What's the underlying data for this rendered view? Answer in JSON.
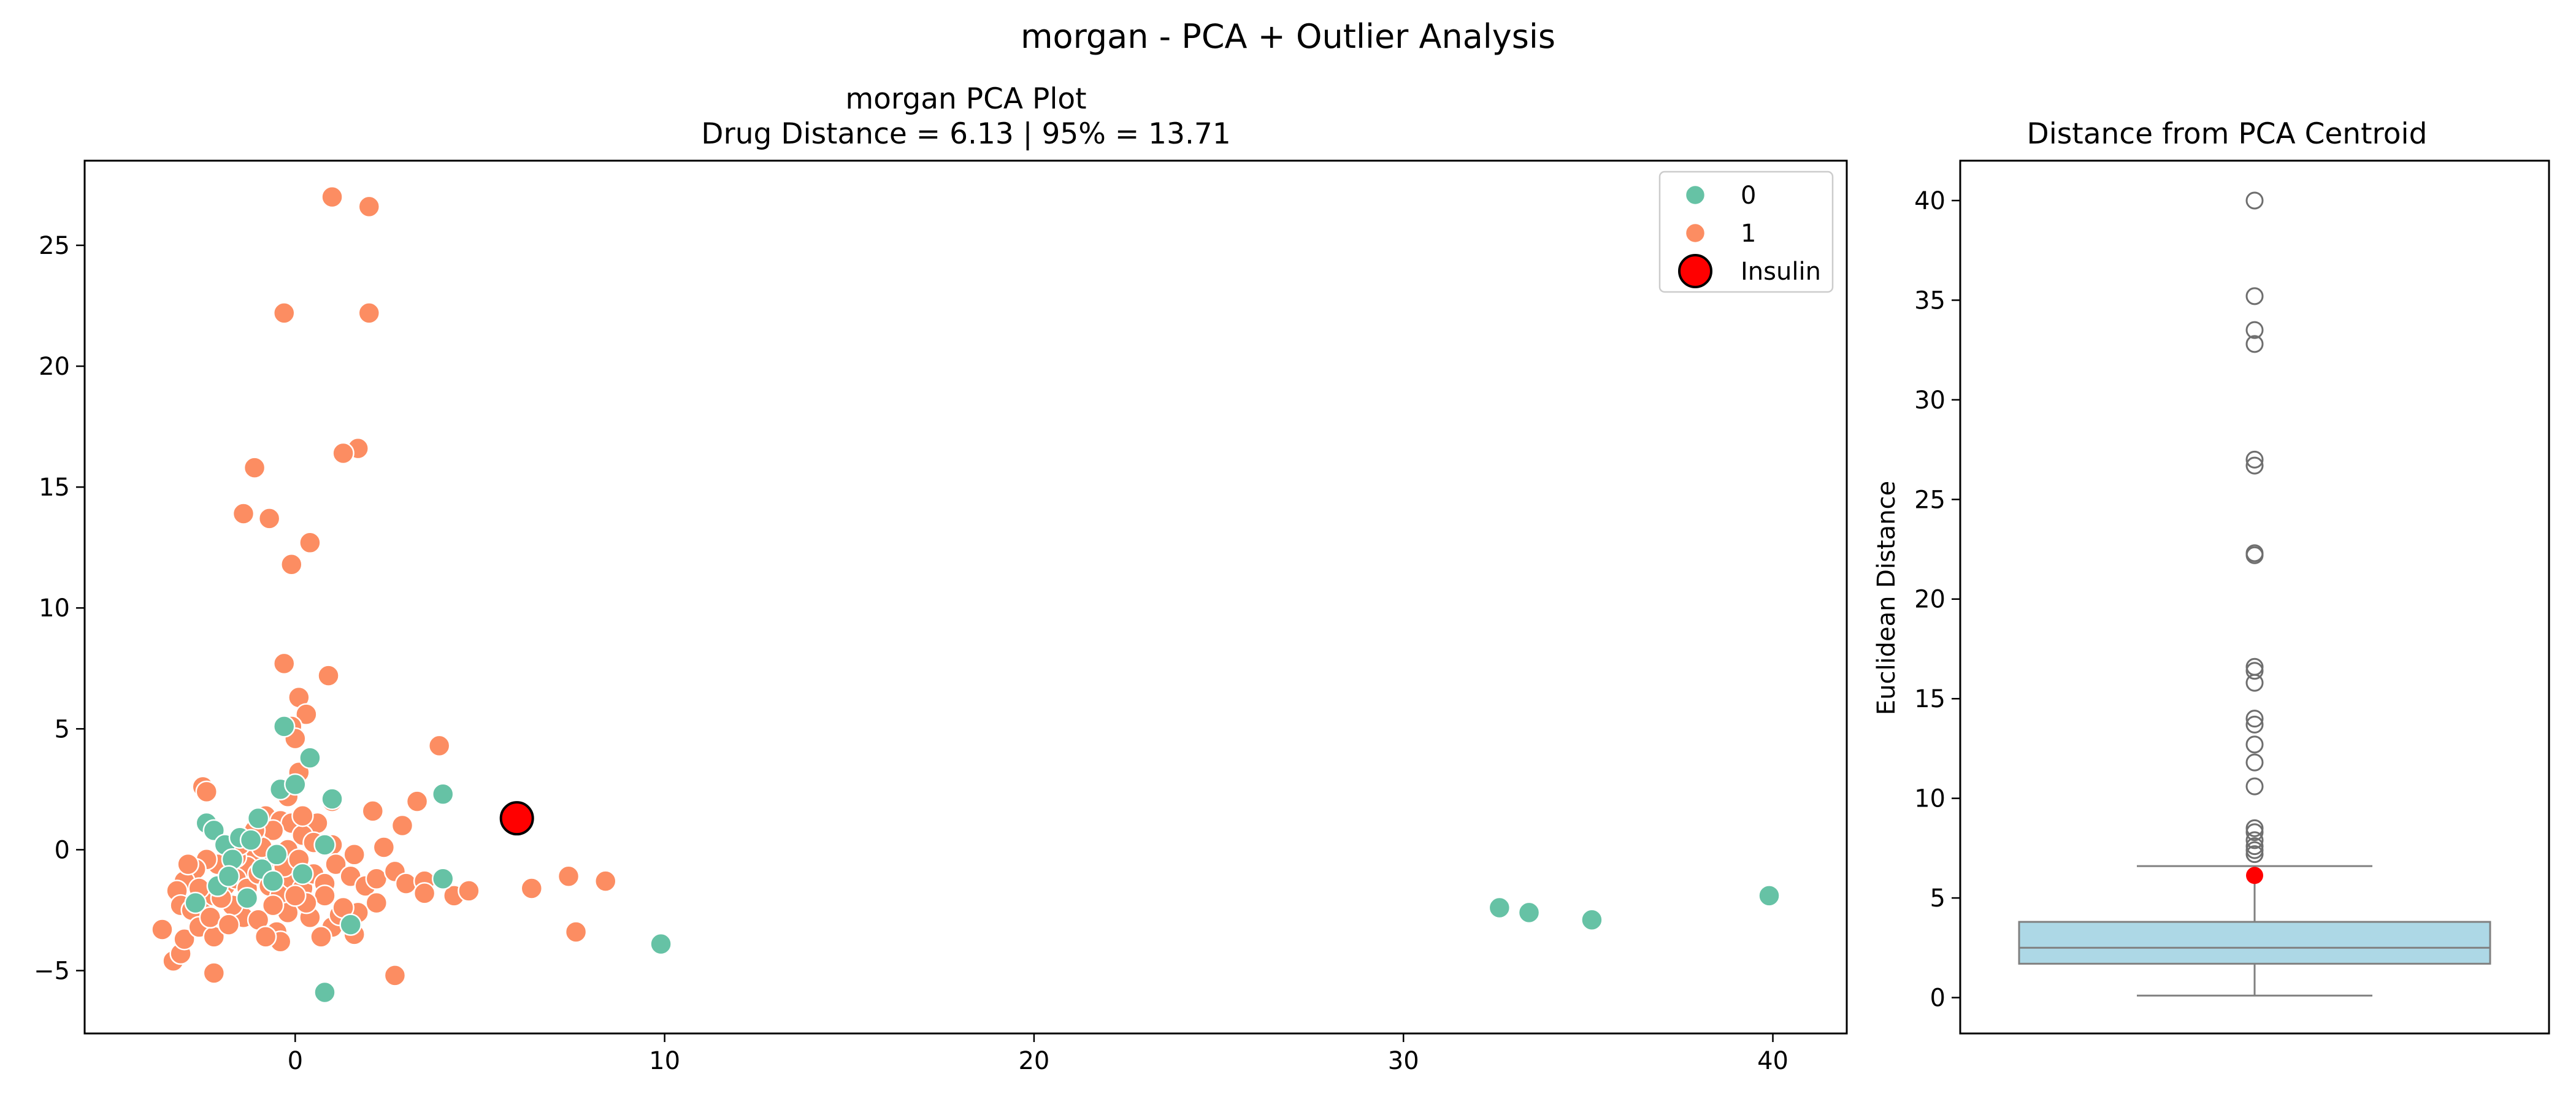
{
  "figure": {
    "suptitle": "morgan - PCA + Outlier Analysis"
  },
  "chart_data": [
    {
      "type": "scatter",
      "title_line1": "morgan PCA Plot",
      "title_line2": "Drug Distance = 6.13 | 95% = 13.71",
      "xlabel": "",
      "ylabel": "",
      "xlim": [
        -5.7,
        42.0
      ],
      "ylim": [
        -7.6,
        28.5
      ],
      "xticks": [
        0,
        10,
        20,
        30,
        40
      ],
      "yticks": [
        -5,
        0,
        5,
        10,
        15,
        20,
        25
      ],
      "grid": false,
      "legend_position": "top-right",
      "legend": [
        {
          "label": "0",
          "color": "#66c2a5",
          "marker": "circle"
        },
        {
          "label": "1",
          "color": "#fc8d62",
          "marker": "circle"
        },
        {
          "label": "Insulin",
          "color": "#ff0000",
          "marker": "circle-outlined"
        }
      ],
      "series": [
        {
          "name": "0",
          "color": "#66c2a5",
          "points": [
            [
              -2.4,
              1.1
            ],
            [
              -2.2,
              0.8
            ],
            [
              -1.9,
              0.2
            ],
            [
              -1.7,
              -0.4
            ],
            [
              -1.5,
              0.5
            ],
            [
              -1.2,
              0.4
            ],
            [
              -1.0,
              1.3
            ],
            [
              -0.9,
              -0.8
            ],
            [
              -0.6,
              -1.3
            ],
            [
              -0.4,
              2.5
            ],
            [
              -0.3,
              5.1
            ],
            [
              0.0,
              2.7
            ],
            [
              0.4,
              3.8
            ],
            [
              0.8,
              0.2
            ],
            [
              1.0,
              2.1
            ],
            [
              4.0,
              2.3
            ],
            [
              4.0,
              -1.2
            ],
            [
              1.5,
              -3.1
            ],
            [
              0.8,
              -5.9
            ],
            [
              9.9,
              -3.9
            ],
            [
              32.6,
              -2.4
            ],
            [
              33.4,
              -2.6
            ],
            [
              35.1,
              -2.9
            ],
            [
              39.9,
              -1.9
            ],
            [
              -2.1,
              -1.5
            ],
            [
              -1.3,
              -2.0
            ],
            [
              -0.5,
              -0.2
            ],
            [
              0.2,
              -1.0
            ],
            [
              -2.7,
              -2.2
            ],
            [
              -1.8,
              -1.1
            ]
          ]
        },
        {
          "name": "1",
          "color": "#fc8d62",
          "points": [
            [
              1.0,
              27.0
            ],
            [
              2.0,
              26.6
            ],
            [
              -0.3,
              22.2
            ],
            [
              2.0,
              22.2
            ],
            [
              1.7,
              16.6
            ],
            [
              1.3,
              16.4
            ],
            [
              -1.1,
              15.8
            ],
            [
              -1.4,
              13.9
            ],
            [
              -0.7,
              13.7
            ],
            [
              0.4,
              12.7
            ],
            [
              -0.1,
              11.8
            ],
            [
              -0.3,
              7.7
            ],
            [
              0.9,
              7.2
            ],
            [
              0.1,
              6.3
            ],
            [
              0.3,
              5.6
            ],
            [
              -0.1,
              5.1
            ],
            [
              0.0,
              4.6
            ],
            [
              0.1,
              3.2
            ],
            [
              3.9,
              4.3
            ],
            [
              -2.5,
              2.6
            ],
            [
              -2.4,
              2.4
            ],
            [
              -0.2,
              2.2
            ],
            [
              -0.8,
              1.4
            ],
            [
              0.6,
              1.1
            ],
            [
              1.0,
              2.0
            ],
            [
              2.1,
              1.6
            ],
            [
              2.9,
              1.0
            ],
            [
              3.3,
              2.0
            ],
            [
              -0.4,
              1.2
            ],
            [
              -0.1,
              1.1
            ],
            [
              -0.6,
              0.8
            ],
            [
              0.2,
              0.6
            ],
            [
              0.5,
              0.3
            ],
            [
              1.0,
              0.2
            ],
            [
              1.6,
              -0.2
            ],
            [
              2.4,
              0.1
            ],
            [
              -0.2,
              0.0
            ],
            [
              -0.5,
              -0.3
            ],
            [
              -0.8,
              -0.5
            ],
            [
              -1.1,
              -0.2
            ],
            [
              -1.3,
              -0.7
            ],
            [
              -1.6,
              -0.3
            ],
            [
              -1.9,
              -0.9
            ],
            [
              -2.1,
              -0.6
            ],
            [
              -2.4,
              -0.4
            ],
            [
              -2.7,
              -0.8
            ],
            [
              -3.0,
              -1.3
            ],
            [
              -3.2,
              -1.7
            ],
            [
              -3.1,
              -2.3
            ],
            [
              -2.8,
              -2.5
            ],
            [
              -2.5,
              -2.2
            ],
            [
              -2.2,
              -1.9
            ],
            [
              -1.9,
              -1.5
            ],
            [
              -1.6,
              -1.2
            ],
            [
              -1.3,
              -1.6
            ],
            [
              -1.0,
              -1.0
            ],
            [
              -0.7,
              -1.5
            ],
            [
              -0.4,
              -1.9
            ],
            [
              -0.1,
              -1.2
            ],
            [
              0.2,
              -1.6
            ],
            [
              0.5,
              -1.0
            ],
            [
              0.8,
              -1.4
            ],
            [
              1.1,
              -0.6
            ],
            [
              1.5,
              -1.1
            ],
            [
              1.9,
              -1.5
            ],
            [
              2.2,
              -1.2
            ],
            [
              2.7,
              -0.9
            ],
            [
              3.0,
              -1.4
            ],
            [
              3.5,
              -1.3
            ],
            [
              3.5,
              -1.8
            ],
            [
              4.3,
              -1.9
            ],
            [
              4.7,
              -1.7
            ],
            [
              6.4,
              -1.6
            ],
            [
              7.4,
              -1.1
            ],
            [
              8.4,
              -1.3
            ],
            [
              7.6,
              -3.4
            ],
            [
              2.7,
              -5.2
            ],
            [
              -2.2,
              -5.1
            ],
            [
              -3.3,
              -4.6
            ],
            [
              -3.1,
              -4.3
            ],
            [
              -3.6,
              -3.3
            ],
            [
              -3.0,
              -3.7
            ],
            [
              -2.6,
              -3.2
            ],
            [
              -2.2,
              -3.6
            ],
            [
              -1.4,
              -2.8
            ],
            [
              -0.5,
              -3.4
            ],
            [
              -0.4,
              -3.8
            ],
            [
              0.4,
              -2.8
            ],
            [
              1.0,
              -3.2
            ],
            [
              1.6,
              -3.5
            ],
            [
              1.7,
              -2.6
            ],
            [
              1.2,
              -2.7
            ],
            [
              0.8,
              -1.9
            ],
            [
              0.3,
              -2.2
            ],
            [
              -0.2,
              -2.6
            ],
            [
              -0.6,
              -2.3
            ],
            [
              -1.0,
              -2.9
            ],
            [
              -1.7,
              -2.3
            ],
            [
              -2.0,
              -2.0
            ],
            [
              -2.6,
              -1.6
            ],
            [
              -2.9,
              -0.6
            ],
            [
              -1.5,
              0.2
            ],
            [
              -0.9,
              0.1
            ],
            [
              -1.1,
              0.8
            ],
            [
              -0.3,
              -0.7
            ],
            [
              0.1,
              -0.4
            ],
            [
              1.3,
              -2.4
            ],
            [
              2.2,
              -2.2
            ],
            [
              0.7,
              -3.6
            ],
            [
              0.0,
              -1.9
            ],
            [
              -2.3,
              -2.8
            ],
            [
              -1.8,
              -3.1
            ],
            [
              -0.8,
              -3.6
            ],
            [
              0.2,
              1.4
            ]
          ]
        }
      ],
      "highlight": {
        "name": "Insulin",
        "x": 6.0,
        "y": 1.3,
        "color": "#ff0000",
        "edge": "#000000"
      }
    },
    {
      "type": "box",
      "title": "Distance from PCA Centroid",
      "xlabel": "",
      "ylabel": "Euclidean Distance",
      "ylim": [
        -1.8,
        42.0
      ],
      "yticks": [
        0,
        5,
        10,
        15,
        20,
        25,
        30,
        35,
        40
      ],
      "grid": false,
      "box": {
        "whisker_low": 0.1,
        "q1": 1.7,
        "median": 2.5,
        "q3": 3.8,
        "whisker_high": 6.6,
        "fill": "#add8e6",
        "edge": "#808080"
      },
      "outliers": [
        40.0,
        35.2,
        33.5,
        32.8,
        27.0,
        26.7,
        22.3,
        22.2,
        16.6,
        16.4,
        15.8,
        14.0,
        13.7,
        12.7,
        11.8,
        10.6,
        8.5,
        8.3,
        7.9,
        7.6,
        7.4,
        7.2
      ],
      "drug_point": {
        "value": 6.13,
        "color": "#ff0000"
      }
    }
  ]
}
